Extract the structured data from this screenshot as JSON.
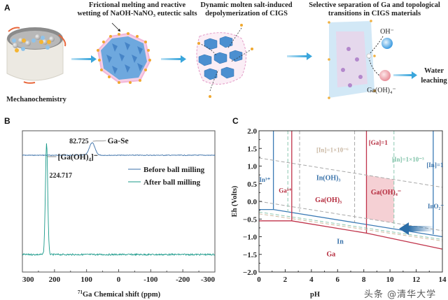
{
  "panel_a": {
    "letter": "A",
    "steps": [
      {
        "label": "Mechanochemistry"
      },
      {
        "title_line1": "Frictional melting and reactive",
        "title_line2": "wetting of NaOH-NaNO₃ eutectic salts"
      },
      {
        "title_line1": "Dynamic molten salt-induced",
        "title_line2": "depolymerization of CIGS"
      },
      {
        "title_line1": "Selective separation of Ga and topological",
        "title_line2": "transitions in CIGS materials"
      }
    ],
    "ion_oh": "OH⁻",
    "ion_gaoh4": "Ga(OH)₄⁻",
    "final_step_line1": "Water",
    "final_step_line2": "leaching",
    "colors": {
      "arrow": "#3aa6dc",
      "crystal": "#4a8fcf",
      "salt": "#f0a830",
      "ga_ion": "#f2a0a8"
    }
  },
  "chart_data": [
    {
      "panel": "B",
      "type": "line",
      "title": "",
      "xlabel": "71Ga Chemical shift (ppm)",
      "xlabel_sup": "71",
      "xlabel_main": "Ga Chemical shift (ppm)",
      "ylabel": "",
      "xlim": [
        300,
        -300
      ],
      "xticks": [
        "300",
        "200",
        "100",
        "0",
        "-100",
        "-200",
        "-300"
      ],
      "xtick_values": [
        300,
        200,
        100,
        0,
        -100,
        -200,
        -300
      ],
      "series": [
        {
          "name": "Before ball milling",
          "color": "#3a6fa8",
          "baseline": 1.0,
          "peak_center": 82.725,
          "peak_height": 0.2,
          "peak_width": 12
        },
        {
          "name": "After ball milling",
          "color": "#1a9a8a",
          "baseline": 0.0,
          "peak_center": 224.717,
          "peak_height": 1.6,
          "peak_width": 5
        }
      ],
      "annotations": [
        {
          "text": "82.725",
          "x": 82.725
        },
        {
          "text": "Ga-Se",
          "x": 82.725
        },
        {
          "text": "[Ga(OH)₄]⁻",
          "x": 224.717
        },
        {
          "text": "224.717",
          "x": 224.717
        }
      ],
      "legend": {
        "position": "center-right",
        "entries": [
          "Before ball milling",
          "After ball milling"
        ]
      }
    },
    {
      "panel": "C",
      "type": "line",
      "title": "",
      "xlabel": "pH",
      "ylabel": "Eh (Volts)",
      "xlim": [
        0,
        14
      ],
      "ylim": [
        -2.0,
        2.0
      ],
      "xticks": [
        "0",
        "2",
        "4",
        "6",
        "8",
        "10",
        "12",
        "14"
      ],
      "xtick_values": [
        0,
        2,
        4,
        6,
        8,
        10,
        12,
        14
      ],
      "yticks": [
        "2.0",
        "1.5",
        "1.0",
        "0.5",
        "0.0",
        "−0.5",
        "−1.0",
        "−1.5",
        "−2.0"
      ],
      "ytick_values": [
        2.0,
        1.5,
        1.0,
        0.5,
        0.0,
        -0.5,
        -1.0,
        -1.5,
        -2.0
      ],
      "boundaries": {
        "in_solid_blue": [
          [
            [
              1.1,
              2.0
            ],
            [
              1.1,
              -0.23
            ]
          ],
          [
            [
              0,
              -0.23
            ],
            [
              1.1,
              -0.23
            ],
            [
              14,
              -1.0
            ]
          ],
          [
            [
              13.3,
              2.0
            ],
            [
              13.3,
              -0.93
            ]
          ]
        ],
        "ga_solid_red": [
          [
            [
              2.5,
              2.0
            ],
            [
              2.5,
              -0.55
            ]
          ],
          [
            [
              0,
              -0.55
            ],
            [
              2.5,
              -0.55
            ],
            [
              8.2,
              -0.9
            ],
            [
              14,
              -1.35
            ]
          ],
          [
            [
              8.2,
              2.0
            ],
            [
              8.2,
              -0.9
            ]
          ]
        ],
        "dashed_gray": [
          [
            [
              3.1,
              2.0
            ],
            [
              3.1,
              -0.3
            ]
          ],
          [
            [
              7.3,
              2.0
            ],
            [
              7.3,
              -0.6
            ]
          ],
          [
            [
              0,
              1.23
            ],
            [
              14,
              0.4
            ]
          ],
          [
            [
              0,
              0.0
            ],
            [
              14,
              -0.83
            ]
          ]
        ],
        "dashed_green": [
          [
            [
              2.2,
              2.0
            ],
            [
              2.2,
              -0.3
            ]
          ],
          [
            [
              10.3,
              2.0
            ],
            [
              10.3,
              -0.75
            ]
          ],
          [
            [
              0,
              -0.3
            ],
            [
              14,
              -1.08
            ]
          ]
        ],
        "dashed_tan": [
          [
            [
              0,
              -0.35
            ],
            [
              14,
              -1.12
            ]
          ]
        ]
      },
      "shaded_region": {
        "label": "Ga(OH)₄⁻",
        "ph_range": [
          8.2,
          10.3
        ],
        "color": "#f5d0d4"
      },
      "region_labels": [
        {
          "text": "In³⁺",
          "color": "#3a73aa",
          "ph": 0.5,
          "eh": 0.55
        },
        {
          "text": "Ga³⁺",
          "color": "#b42a3c",
          "ph": 1.8,
          "eh": 0.45
        },
        {
          "text": "In(OH)₃",
          "color": "#3a73aa",
          "ph": 5.3,
          "eh": 0.6
        },
        {
          "text": "Ga(OH)₃",
          "color": "#b42a3c",
          "ph": 5.3,
          "eh": 0.1
        },
        {
          "text": "Ga(OH)₄⁻",
          "color": "#b42a3c",
          "ph": 9.7,
          "eh": 0.2
        },
        {
          "text": "InO₂⁻",
          "color": "#3a73aa",
          "ph": 13.6,
          "eh": 0.0
        },
        {
          "text": "In",
          "color": "#3a73aa",
          "ph": 6.2,
          "eh": -1.2
        },
        {
          "text": "Ga",
          "color": "#b42a3c",
          "ph": 5.5,
          "eh": -1.55
        },
        {
          "text": "[Ga]=1",
          "color": "#b42a3c",
          "ph": 9.1,
          "eh": 1.6
        },
        {
          "text": "[In]=1×10⁻⁶",
          "color": "#c9b7a2",
          "ph": 5.6,
          "eh": 1.28
        },
        {
          "text": "[In]=1×10⁻³",
          "color": "#7fc2a8",
          "ph": 11.8,
          "eh": 1.05
        },
        {
          "text": "[In]=1",
          "color": "#3a73aa",
          "ph": 13.7,
          "eh": 0.85
        }
      ],
      "arrow": {
        "direction": "left",
        "color": "#2b6ea8"
      }
    }
  ],
  "panel_b": {
    "letter": "B"
  },
  "panel_c": {
    "letter": "C"
  },
  "watermark": "头条 @清华大学"
}
